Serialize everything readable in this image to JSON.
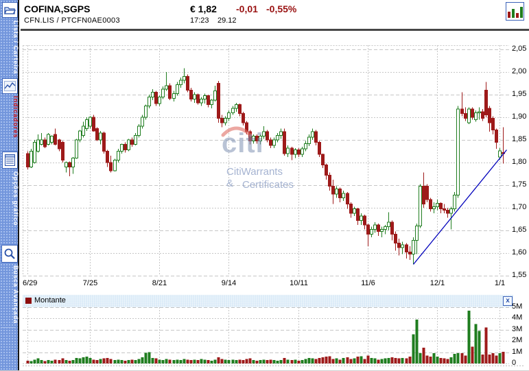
{
  "header": {
    "symbol": "COFINA,SGPS",
    "code_line": "CFN.LIS  /  PTCFN0AE0003",
    "price": "€ 1,82",
    "change": "-0,01",
    "change_pct": "-0,55%",
    "time": "17:23",
    "date": "29.12",
    "negative_color": "#991111"
  },
  "sidebar": {
    "tabs": [
      {
        "label": "Lista / Carteira",
        "color": "#ffffff"
      },
      {
        "label": "Indicadores",
        "color": "#cc1111"
      },
      {
        "label": "Opções gráfico",
        "color": "#ffffff"
      },
      {
        "label": "Busca Avançada",
        "color": "#ffffff"
      }
    ]
  },
  "watermark": {
    "logo": "citi",
    "line1": "CitiWarrants &",
    "line2": "Certificates"
  },
  "volume_panel": {
    "legend_label": "Montante",
    "close_label": "x"
  },
  "chart_data": {
    "type": "candlestick+volume",
    "title": "COFINA,SGPS daily candlestick chart with volume (Montante)",
    "grid": true,
    "colors": {
      "up": "#1f7d1f",
      "down": "#9e1a1a",
      "grid": "#c6c6c6",
      "trend": "#0000bb",
      "volume_up": "#1f7d1f",
      "volume_down": "#9e1a1a"
    },
    "y_axis": {
      "min": 1.55,
      "max": 2.05,
      "step": 0.05,
      "tick_labels": [
        "2,05",
        "2,00",
        "1,95",
        "1,90",
        "1,85",
        "1,80",
        "1,75",
        "1,70",
        "1,65",
        "1,60",
        "1,55"
      ]
    },
    "x_axis": {
      "ticks": [
        {
          "i": 0,
          "label": "6/29"
        },
        {
          "i": 18,
          "label": "7/25"
        },
        {
          "i": 38,
          "label": "8/21"
        },
        {
          "i": 58,
          "label": "9/14"
        },
        {
          "i": 78,
          "label": "10/11"
        },
        {
          "i": 98,
          "label": "11/6"
        },
        {
          "i": 118,
          "label": "12/1"
        },
        {
          "i": 136,
          "label": "1/1"
        }
      ]
    },
    "volume_axis": {
      "max_millions": 5,
      "tick_labels": [
        "5M",
        "4M",
        "3M",
        "2M",
        "1M",
        "0"
      ]
    },
    "trendline": {
      "from": {
        "i": 111,
        "price": 1.575
      },
      "to": {
        "i": 138,
        "price": 1.828
      }
    },
    "candles_format": [
      "open",
      "high",
      "low",
      "close",
      "volume_millions"
    ],
    "candles": [
      [
        1.82,
        1.825,
        1.785,
        1.79,
        0.25
      ],
      [
        1.79,
        1.83,
        1.788,
        1.825,
        0.2
      ],
      [
        1.8,
        1.85,
        1.798,
        1.845,
        0.35
      ],
      [
        1.825,
        1.862,
        1.822,
        1.85,
        0.45
      ],
      [
        1.84,
        1.865,
        1.838,
        1.85,
        0.3
      ],
      [
        1.85,
        1.855,
        1.832,
        1.835,
        0.2
      ],
      [
        1.84,
        1.865,
        1.838,
        1.862,
        0.3
      ],
      [
        1.845,
        1.86,
        1.84,
        1.858,
        0.25
      ],
      [
        1.862,
        1.875,
        1.838,
        1.84,
        0.35
      ],
      [
        1.85,
        1.852,
        1.825,
        1.83,
        0.3
      ],
      [
        1.845,
        1.848,
        1.8,
        1.805,
        0.45
      ],
      [
        1.79,
        1.802,
        1.778,
        1.8,
        0.3
      ],
      [
        1.8,
        1.802,
        1.77,
        1.79,
        0.25
      ],
      [
        1.79,
        1.812,
        1.775,
        1.81,
        0.3
      ],
      [
        1.81,
        1.852,
        1.808,
        1.85,
        0.5
      ],
      [
        1.85,
        1.872,
        1.845,
        1.87,
        0.45
      ],
      [
        1.86,
        1.89,
        1.855,
        1.88,
        0.55
      ],
      [
        1.875,
        1.9,
        1.87,
        1.895,
        0.6
      ],
      [
        1.88,
        1.902,
        1.875,
        1.9,
        0.5
      ],
      [
        1.9,
        1.905,
        1.868,
        1.87,
        0.35
      ],
      [
        1.875,
        1.878,
        1.848,
        1.85,
        0.3
      ],
      [
        1.85,
        1.87,
        1.84,
        1.865,
        0.4
      ],
      [
        1.865,
        1.868,
        1.82,
        1.825,
        0.45
      ],
      [
        1.825,
        1.828,
        1.79,
        1.8,
        0.5
      ],
      [
        1.8,
        1.815,
        1.778,
        1.782,
        0.4
      ],
      [
        1.782,
        1.808,
        1.78,
        1.805,
        0.3
      ],
      [
        1.805,
        1.83,
        1.8,
        1.825,
        0.35
      ],
      [
        1.825,
        1.842,
        1.82,
        1.84,
        0.3
      ],
      [
        1.84,
        1.845,
        1.822,
        1.828,
        0.25
      ],
      [
        1.828,
        1.852,
        1.825,
        1.85,
        0.3
      ],
      [
        1.85,
        1.855,
        1.835,
        1.84,
        0.35
      ],
      [
        1.84,
        1.865,
        1.838,
        1.86,
        0.3
      ],
      [
        1.86,
        1.885,
        1.855,
        1.88,
        0.4
      ],
      [
        1.88,
        1.905,
        1.875,
        1.9,
        0.55
      ],
      [
        1.9,
        1.928,
        1.895,
        1.925,
        0.95
      ],
      [
        1.925,
        1.95,
        1.92,
        1.945,
        1.0
      ],
      [
        1.945,
        1.962,
        1.938,
        1.955,
        0.5
      ],
      [
        1.955,
        1.958,
        1.925,
        1.93,
        0.45
      ],
      [
        1.93,
        1.948,
        1.925,
        1.945,
        0.35
      ],
      [
        1.945,
        1.968,
        1.94,
        1.962,
        0.3
      ],
      [
        1.962,
        2.0,
        1.958,
        1.97,
        0.4
      ],
      [
        1.97,
        1.975,
        1.938,
        1.942,
        0.35
      ],
      [
        1.942,
        1.958,
        1.935,
        1.952,
        0.3
      ],
      [
        1.952,
        1.978,
        1.948,
        1.972,
        0.35
      ],
      [
        1.972,
        1.988,
        1.965,
        1.982,
        0.3
      ],
      [
        1.982,
        2.008,
        1.975,
        1.99,
        0.4
      ],
      [
        1.99,
        1.995,
        1.955,
        1.96,
        0.35
      ],
      [
        1.96,
        1.965,
        1.935,
        1.94,
        0.3
      ],
      [
        1.94,
        1.955,
        1.932,
        1.95,
        0.35
      ],
      [
        1.95,
        1.952,
        1.928,
        1.932,
        0.3
      ],
      [
        1.932,
        1.945,
        1.925,
        1.94,
        0.4
      ],
      [
        1.94,
        1.952,
        1.93,
        1.948,
        0.35
      ],
      [
        1.948,
        1.95,
        1.922,
        1.928,
        0.3
      ],
      [
        1.928,
        1.94,
        1.92,
        1.938,
        0.25
      ],
      [
        1.938,
        1.97,
        1.935,
        1.958,
        0.35
      ],
      [
        1.975,
        1.98,
        1.888,
        1.898,
        0.55
      ],
      [
        1.898,
        1.905,
        1.878,
        1.888,
        0.4
      ],
      [
        1.888,
        1.902,
        1.882,
        1.898,
        0.35
      ],
      [
        1.898,
        1.915,
        1.892,
        1.91,
        0.3
      ],
      [
        1.91,
        1.925,
        1.905,
        1.92,
        0.35
      ],
      [
        1.92,
        1.932,
        1.912,
        1.928,
        0.3
      ],
      [
        1.928,
        1.93,
        1.902,
        1.908,
        0.35
      ],
      [
        1.908,
        1.912,
        1.882,
        1.888,
        0.3
      ],
      [
        1.888,
        1.892,
        1.862,
        1.868,
        0.4
      ],
      [
        1.868,
        1.872,
        1.84,
        1.848,
        0.45
      ],
      [
        1.848,
        1.862,
        1.842,
        1.858,
        0.3
      ],
      [
        1.858,
        1.862,
        1.842,
        1.848,
        0.25
      ],
      [
        1.848,
        1.862,
        1.84,
        1.858,
        0.3
      ],
      [
        1.858,
        1.88,
        1.852,
        1.868,
        0.35
      ],
      [
        1.868,
        1.872,
        1.845,
        1.85,
        0.3
      ],
      [
        1.85,
        1.855,
        1.832,
        1.838,
        0.35
      ],
      [
        1.838,
        1.855,
        1.832,
        1.85,
        0.3
      ],
      [
        1.85,
        1.865,
        1.845,
        1.86,
        0.25
      ],
      [
        1.86,
        1.875,
        1.852,
        1.868,
        0.3
      ],
      [
        1.868,
        1.875,
        1.815,
        1.82,
        0.5
      ],
      [
        1.82,
        1.838,
        1.812,
        1.832,
        0.35
      ],
      [
        1.832,
        1.835,
        1.805,
        1.818,
        0.3
      ],
      [
        1.818,
        1.832,
        1.81,
        1.828,
        0.35
      ],
      [
        1.828,
        1.832,
        1.812,
        1.818,
        0.25
      ],
      [
        1.818,
        1.835,
        1.812,
        1.83,
        0.3
      ],
      [
        1.83,
        1.848,
        1.825,
        1.842,
        0.4
      ],
      [
        1.842,
        1.862,
        1.836,
        1.856,
        0.5
      ],
      [
        1.856,
        1.875,
        1.85,
        1.868,
        0.45
      ],
      [
        1.868,
        1.872,
        1.838,
        1.845,
        0.4
      ],
      [
        1.845,
        1.848,
        1.812,
        1.818,
        0.5
      ],
      [
        1.818,
        1.82,
        1.788,
        1.795,
        0.55
      ],
      [
        1.795,
        1.798,
        1.762,
        1.772,
        0.6
      ],
      [
        1.772,
        1.778,
        1.738,
        1.748,
        0.65
      ],
      [
        1.748,
        1.762,
        1.708,
        1.73,
        0.4
      ],
      [
        1.73,
        1.748,
        1.722,
        1.742,
        0.45
      ],
      [
        1.742,
        1.745,
        1.712,
        1.722,
        0.35
      ],
      [
        1.722,
        1.738,
        1.715,
        1.732,
        0.5
      ],
      [
        1.732,
        1.735,
        1.698,
        1.708,
        0.55
      ],
      [
        1.708,
        1.712,
        1.678,
        1.688,
        0.4
      ],
      [
        1.688,
        1.702,
        1.682,
        1.698,
        0.45
      ],
      [
        1.698,
        1.7,
        1.662,
        1.672,
        0.6
      ],
      [
        1.672,
        1.688,
        1.662,
        1.682,
        0.65
      ],
      [
        1.682,
        1.685,
        1.652,
        1.662,
        0.4
      ],
      [
        1.662,
        1.665,
        1.615,
        1.642,
        0.7
      ],
      [
        1.642,
        1.658,
        1.635,
        1.652,
        0.5
      ],
      [
        1.652,
        1.668,
        1.645,
        1.662,
        0.45
      ],
      [
        1.662,
        1.665,
        1.638,
        1.648,
        0.35
      ],
      [
        1.648,
        1.658,
        1.635,
        1.652,
        0.4
      ],
      [
        1.652,
        1.662,
        1.642,
        1.658,
        0.45
      ],
      [
        1.658,
        1.69,
        1.65,
        1.668,
        0.5
      ],
      [
        1.668,
        1.672,
        1.628,
        1.642,
        0.55
      ],
      [
        1.642,
        1.648,
        1.605,
        1.622,
        0.5
      ],
      [
        1.622,
        1.632,
        1.595,
        1.612,
        0.45
      ],
      [
        1.612,
        1.625,
        1.598,
        1.618,
        0.5
      ],
      [
        1.618,
        1.622,
        1.588,
        1.602,
        0.45
      ],
      [
        1.602,
        1.615,
        1.585,
        1.598,
        0.6
      ],
      [
        1.598,
        1.635,
        1.575,
        1.628,
        2.6
      ],
      [
        1.628,
        1.665,
        1.598,
        1.66,
        3.9
      ],
      [
        1.66,
        1.752,
        1.655,
        1.748,
        0.9
      ],
      [
        1.748,
        1.778,
        1.7,
        1.708,
        1.4
      ],
      [
        1.748,
        1.752,
        1.712,
        1.718,
        0.7
      ],
      [
        1.718,
        1.722,
        1.692,
        1.698,
        0.6
      ],
      [
        1.698,
        1.712,
        1.688,
        1.702,
        0.9
      ],
      [
        1.702,
        1.718,
        1.695,
        1.71,
        0.6
      ],
      [
        1.71,
        1.712,
        1.688,
        1.698,
        0.5
      ],
      [
        1.698,
        1.708,
        1.688,
        1.695,
        0.45
      ],
      [
        1.695,
        1.7,
        1.678,
        1.688,
        0.4
      ],
      [
        1.688,
        1.702,
        1.652,
        1.698,
        0.55
      ],
      [
        1.698,
        1.735,
        1.692,
        1.728,
        0.85
      ],
      [
        1.728,
        1.925,
        1.722,
        1.918,
        0.9
      ],
      [
        1.918,
        1.955,
        1.902,
        1.908,
        0.9
      ],
      [
        1.908,
        1.922,
        1.892,
        1.898,
        0.7
      ],
      [
        1.888,
        1.922,
        1.885,
        1.918,
        4.7
      ],
      [
        1.918,
        1.922,
        1.895,
        1.9,
        1.5
      ],
      [
        1.895,
        1.915,
        1.89,
        1.91,
        3.5
      ],
      [
        1.91,
        1.922,
        1.895,
        1.912,
        2.9
      ],
      [
        1.912,
        1.918,
        1.892,
        1.898,
        0.8
      ],
      [
        1.96,
        1.978,
        1.9,
        1.905,
        3.2
      ],
      [
        1.92,
        1.925,
        1.868,
        1.888,
        0.8
      ],
      [
        1.898,
        1.902,
        1.862,
        1.872,
        0.9
      ],
      [
        1.872,
        1.875,
        1.83,
        1.845,
        0.7
      ],
      [
        1.812,
        1.832,
        1.806,
        1.826,
        0.9
      ],
      [
        1.822,
        1.878,
        1.798,
        1.82,
        1.05
      ]
    ]
  }
}
